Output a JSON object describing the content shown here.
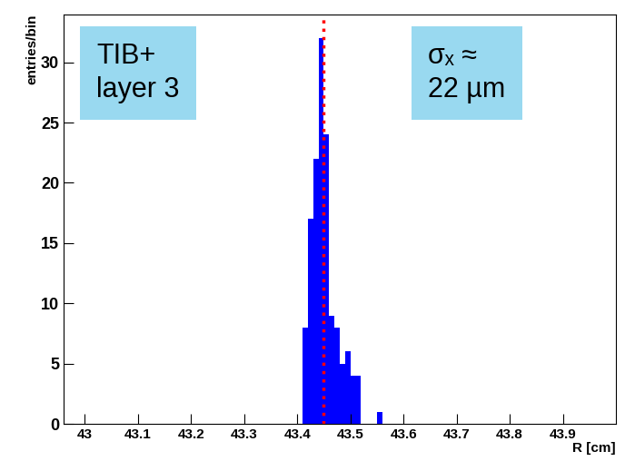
{
  "chart_data": {
    "type": "histogram",
    "x_label": "R [cm]",
    "y_label": "entries/bin",
    "bins": [
      43.41,
      43.42,
      43.43,
      43.44,
      43.45,
      43.46,
      43.47,
      43.48,
      43.49,
      43.5,
      43.51,
      43.52,
      43.53,
      43.54,
      43.55,
      43.56
    ],
    "counts": [
      8,
      17,
      22,
      32,
      24,
      9,
      8,
      5,
      6,
      4,
      4,
      0,
      0,
      0,
      1
    ],
    "color": "#0000ff",
    "vline": {
      "value": 43.45,
      "color": "#ff0000",
      "line_style": "dotted"
    },
    "annotations": [
      "TIB+\nlayer 3",
      "σₓ ≈\n22 µm"
    ],
    "xlim": [
      42.96,
      44.0
    ],
    "xticks": [
      43,
      43.1,
      43.2,
      43.3,
      43.4,
      43.5,
      43.6,
      43.7,
      43.8,
      43.9
    ],
    "ylim": [
      0,
      34
    ],
    "yticks": [
      0,
      5,
      10,
      15,
      20,
      25,
      30
    ],
    "grid": false
  }
}
